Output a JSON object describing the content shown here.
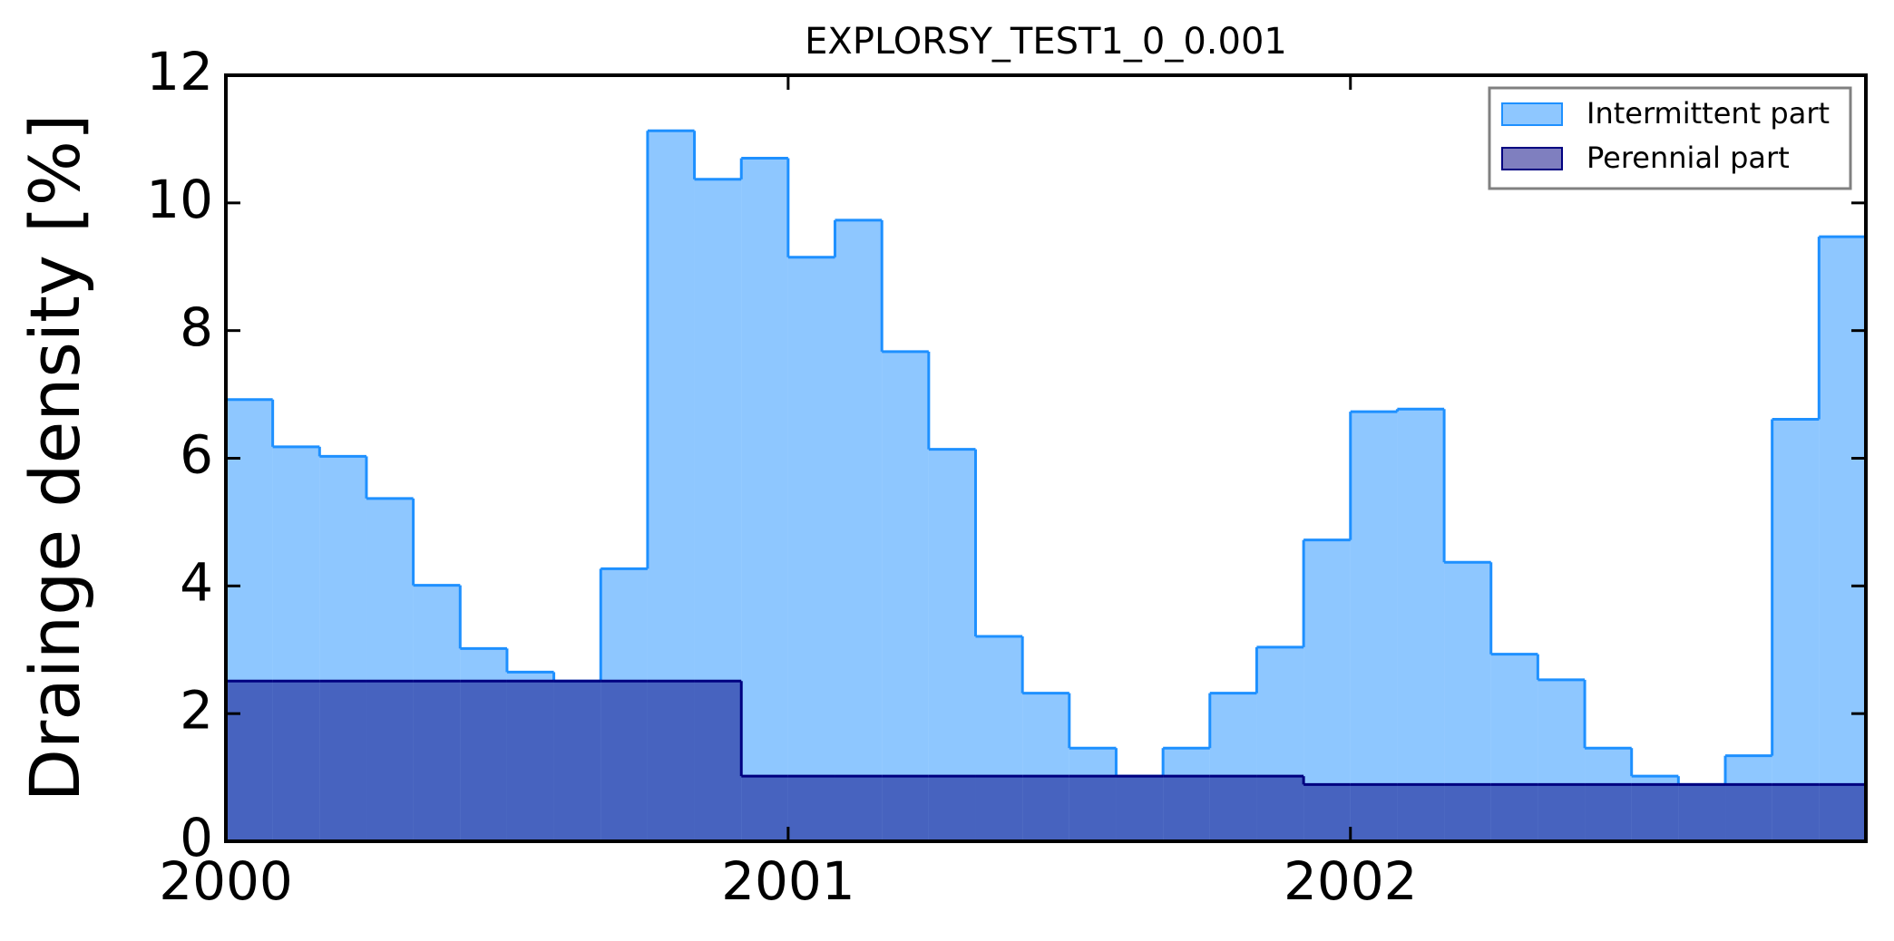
{
  "chart_data": {
    "type": "step-area",
    "title": "EXPLORSY_TEST1_0_0.001",
    "y_label": "Drainge density [%]",
    "x": [
      2000,
      2000.0833,
      2000.1667,
      2000.25,
      2000.3333,
      2000.4167,
      2000.5,
      2000.5833,
      2000.6667,
      2000.75,
      2000.8333,
      2000.9167,
      2001,
      2001.0833,
      2001.1667,
      2001.25,
      2001.3333,
      2001.4167,
      2001.5,
      2001.5833,
      2001.6667,
      2001.75,
      2001.8333,
      2001.9167,
      2002,
      2002.0833,
      2002.1667,
      2002.25,
      2002.3333,
      2002.4167,
      2002.5,
      2002.5833,
      2002.6667,
      2002.75,
      2002.8333
    ],
    "series": [
      {
        "name": "Intermittent part",
        "color": "#1e90ff",
        "values": [
          6.92,
          6.18,
          6.03,
          5.37,
          4.01,
          3.02,
          2.65,
          2.51,
          4.27,
          11.13,
          10.37,
          10.7,
          9.15,
          9.73,
          7.67,
          6.14,
          3.21,
          2.32,
          1.46,
          1.02,
          1.46,
          2.32,
          3.04,
          4.72,
          6.73,
          6.77,
          4.37,
          2.93,
          2.53,
          1.46,
          1.02,
          0.89,
          1.34,
          6.61,
          9.47
        ]
      },
      {
        "name": "Perennial part",
        "color": "#000080",
        "values": [
          2.51,
          2.51,
          2.51,
          2.51,
          2.51,
          2.51,
          2.51,
          2.51,
          2.51,
          2.51,
          2.51,
          1.02,
          1.02,
          1.02,
          1.02,
          1.02,
          1.02,
          1.02,
          1.02,
          1.02,
          1.02,
          1.02,
          1.02,
          0.89,
          0.89,
          0.89,
          0.89,
          0.89,
          0.89,
          0.89,
          0.89,
          0.89,
          0.89,
          0.89,
          0.89
        ]
      }
    ],
    "xlim": [
      2000,
      2002.9167
    ],
    "xticks": [
      2000,
      2001,
      2002
    ],
    "ylim": [
      0,
      12
    ],
    "yticks": [
      0,
      2,
      4,
      6,
      8,
      10,
      12
    ],
    "legend": "upper right"
  }
}
